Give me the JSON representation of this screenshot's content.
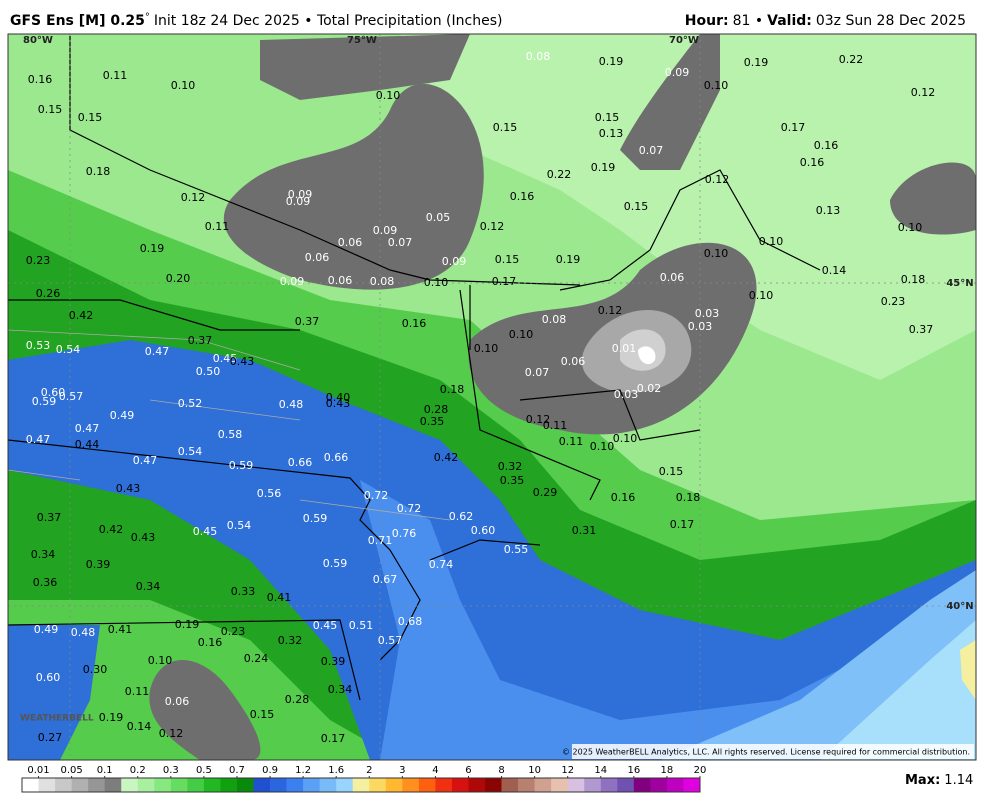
{
  "header": {
    "model": "GFS Ens [M] 0.25",
    "degree": "°",
    "description": "Init 18z 24 Dec 2025 • Total Precipitation (Inches)",
    "hour_label": "Hour:",
    "hour": "81 •",
    "valid_label": "Valid:",
    "valid": "03z Sun 28 Dec 2025"
  },
  "grid_labels": [
    "80°W",
    "75°W",
    "70°W",
    "45°N",
    "40°N"
  ],
  "map_labels": [
    "0.16",
    "0.11",
    "0.10",
    "0.15",
    "0.15",
    "0.18",
    "0.12",
    "0.11",
    "0.09",
    "0.09",
    "0.19",
    "0.20",
    "0.23",
    "0.26",
    "0.42",
    "0.53",
    "0.54",
    "0.47",
    "0.50",
    "0.45",
    "0.43",
    "0.37",
    "0.37",
    "0.09",
    "0.06",
    "0.06",
    "0.06",
    "0.09",
    "0.07",
    "0.08",
    "0.05",
    "0.09",
    "0.10",
    "0.12",
    "0.15",
    "0.17",
    "0.19",
    "0.16",
    "0.22",
    "0.19",
    "0.15",
    "0.15",
    "0.10",
    "0.08",
    "0.19",
    "0.09",
    "0.10",
    "0.19",
    "0.22",
    "0.12",
    "0.15",
    "0.13",
    "0.07",
    "0.12",
    "0.17",
    "0.16",
    "0.16",
    "0.13",
    "0.10",
    "0.10",
    "0.10",
    "0.06",
    "0.14",
    "0.18",
    "0.23",
    "0.37",
    "0.10",
    "0.03",
    "0.03",
    "0.12",
    "0.08",
    "0.10",
    "0.01",
    "0.06",
    "0.10",
    "0.07",
    "0.02",
    "0.03",
    "0.16",
    "0.18",
    "0.28",
    "0.35",
    "0.12",
    "0.11",
    "0.11",
    "0.10",
    "0.10",
    "0.15",
    "0.18",
    "0.16",
    "0.17",
    "0.31",
    "0.32",
    "0.35",
    "0.29",
    "0.42",
    "0.40",
    "0.43",
    "0.48",
    "0.52",
    "0.49",
    "0.60",
    "0.59",
    "0.57",
    "0.47",
    "0.44",
    "0.47",
    "0.58",
    "0.54",
    "0.59",
    "0.66",
    "0.66",
    "0.47",
    "0.43",
    "0.56",
    "0.72",
    "0.72",
    "0.62",
    "0.60",
    "0.55",
    "0.76",
    "0.71",
    "0.59",
    "0.54",
    "0.45",
    "0.43",
    "0.42",
    "0.37",
    "0.34",
    "0.39",
    "0.36",
    "0.34",
    "0.59",
    "0.74",
    "0.67",
    "0.33",
    "0.41",
    "0.68",
    "0.45",
    "0.51",
    "0.57",
    "0.49",
    "0.48",
    "0.41",
    "0.19",
    "0.23",
    "0.16",
    "0.32",
    "0.10",
    "0.30",
    "0.60",
    "0.24",
    "0.39",
    "0.34",
    "0.11",
    "0.06",
    "0.28",
    "0.15",
    "0.19",
    "0.14",
    "0.12",
    "0.27",
    "0.17"
  ],
  "copyright": "© 2025 WeatherBELL Analytics, LLC. All rights reserved. License required for commercial distribution.",
  "logo": "WEATHERBELL",
  "colorbar": {
    "ticks": [
      0.01,
      0.05,
      0.1,
      0.2,
      0.3,
      0.5,
      0.7,
      0.9,
      1.2,
      1.6,
      2,
      3,
      4,
      6,
      8,
      10,
      12,
      14,
      16,
      18,
      20
    ],
    "colors": [
      "#ffffff",
      "#e0e0e0",
      "#c8c8c8",
      "#b0b0b0",
      "#969696",
      "#7d7d7d",
      "#c8f5c0",
      "#a8f0a0",
      "#88e880",
      "#66dd60",
      "#44cc44",
      "#22b822",
      "#10a010",
      "#0a8a0a",
      "#2050d0",
      "#2a66e0",
      "#3a80f0",
      "#5aa0f5",
      "#78bbf8",
      "#98d4fb",
      "#f5f0a0",
      "#fbd860",
      "#ffb830",
      "#ff9020",
      "#ff6010",
      "#f03010",
      "#d81010",
      "#b00808",
      "#8a0404",
      "#a06050",
      "#b88070",
      "#d0a090",
      "#e8c0b0",
      "#d8c0e0",
      "#b098d0",
      "#9070c0",
      "#7050b0",
      "#800080",
      "#a000a0",
      "#c000c0",
      "#e000e0"
    ]
  },
  "max_label": "Max:",
  "max_value": "1.14"
}
